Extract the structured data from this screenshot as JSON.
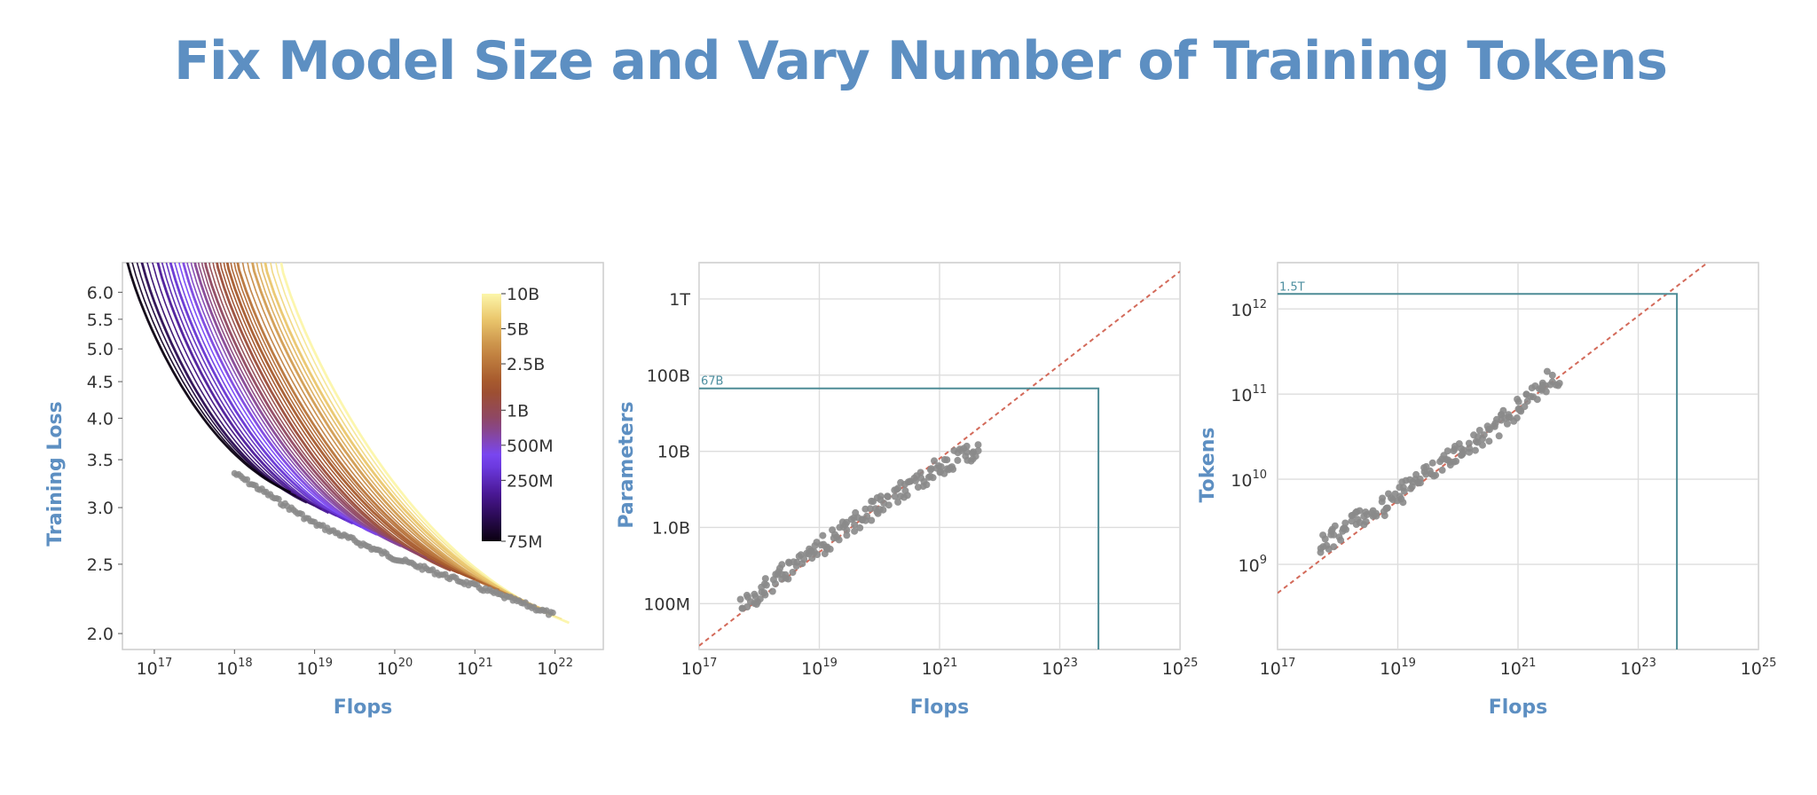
{
  "slide": {
    "title": "Fix Model Size and Vary Number of Training Tokens"
  },
  "colors": {
    "title": "#5d8fc2",
    "points": "#8a8a8a",
    "fit": "#d36a5a",
    "guide": "#4e8c96",
    "grid": "#dddddd",
    "frame": "#cccccc"
  },
  "chart_data": [
    {
      "type": "line",
      "xlabel": "Flops",
      "ylabel": "Training Loss",
      "xscale": "log",
      "yscale": "log",
      "xlim": [
        4e+16,
        4e+22
      ],
      "ylim": [
        1.9,
        6.6
      ],
      "x_ticks": [
        {
          "base": "10",
          "exp": "17",
          "value": 1e+17
        },
        {
          "base": "10",
          "exp": "18",
          "value": 1e+18
        },
        {
          "base": "10",
          "exp": "19",
          "value": 1e+19
        },
        {
          "base": "10",
          "exp": "20",
          "value": 1e+20
        },
        {
          "base": "10",
          "exp": "21",
          "value": 1e+21
        },
        {
          "base": "10",
          "exp": "22",
          "value": 1e+22
        }
      ],
      "y_ticks": [
        {
          "label": "6.0",
          "value": 6.0
        },
        {
          "label": "5.5",
          "value": 5.5
        },
        {
          "label": "5.0",
          "value": 5.0
        },
        {
          "label": "4.5",
          "value": 4.5
        },
        {
          "label": "4.0",
          "value": 4.0
        },
        {
          "label": "3.5",
          "value": 3.5
        },
        {
          "label": "3.0",
          "value": 3.0
        },
        {
          "label": "2.5",
          "value": 2.5
        },
        {
          "label": "2.0",
          "value": 2.0
        }
      ],
      "grid": false,
      "colorbar": {
        "placement": "right",
        "scale": "log",
        "range": [
          75000000,
          10000000000
        ],
        "ticks": [
          {
            "label": "10B",
            "value": 10000000000
          },
          {
            "label": "5B",
            "value": 5000000000
          },
          {
            "label": "2.5B",
            "value": 2500000000
          },
          {
            "label": "1B",
            "value": 1000000000
          },
          {
            "label": "500M",
            "value": 500000000
          },
          {
            "label": "250M",
            "value": 250000000
          },
          {
            "label": "75M",
            "value": 75000000
          }
        ]
      },
      "series": [
        {
          "params": 75000000,
          "x_end": 5e+18,
          "loss_end": 3.15
        },
        {
          "params": 120000000,
          "x_end": 8e+18,
          "loss_end": 3.05
        },
        {
          "params": 200000000,
          "x_end": 1.5e+19,
          "loss_end": 2.95
        },
        {
          "params": 300000000,
          "x_end": 3e+19,
          "loss_end": 2.85
        },
        {
          "params": 450000000,
          "x_end": 6e+19,
          "loss_end": 2.75
        },
        {
          "params": 650000000,
          "x_end": 1.2e+20,
          "loss_end": 2.65
        },
        {
          "params": 900000000,
          "x_end": 2.5e+20,
          "loss_end": 2.55
        },
        {
          "params": 1300000000,
          "x_end": 5e+20,
          "loss_end": 2.45
        },
        {
          "params": 1800000000,
          "x_end": 1e+21,
          "loss_end": 2.38
        },
        {
          "params": 2500000000,
          "x_end": 2e+21,
          "loss_end": 2.3
        },
        {
          "params": 4000000000,
          "x_end": 4e+21,
          "loss_end": 2.22
        },
        {
          "params": 6000000000,
          "x_end": 8e+21,
          "loss_end": 2.15
        },
        {
          "params": 10000000000,
          "x_end": 1.5e+22,
          "loss_end": 2.07
        }
      ],
      "envelope": {
        "x": [
          1e+18,
          1e+19,
          1e+20,
          1e+21,
          1e+22
        ],
        "y": [
          3.35,
          2.85,
          2.55,
          2.33,
          2.12
        ]
      }
    },
    {
      "type": "scatter",
      "xlabel": "Flops",
      "ylabel": "Parameters",
      "xscale": "log",
      "yscale": "log",
      "xlim": [
        1e+17,
        1e+25
      ],
      "ylim": [
        25000000.0,
        3000000000000.0
      ],
      "grid": true,
      "x_ticks": [
        {
          "base": "10",
          "exp": "17",
          "value": 1e+17
        },
        {
          "base": "10",
          "exp": "19",
          "value": 1e+19
        },
        {
          "base": "10",
          "exp": "21",
          "value": 1e+21
        },
        {
          "base": "10",
          "exp": "23",
          "value": 1e+23
        },
        {
          "base": "10",
          "exp": "25",
          "value": 1e+25
        }
      ],
      "y_ticks": [
        {
          "label": "100M",
          "value": 100000000.0
        },
        {
          "label": "1.0B",
          "value": 1000000000.0
        },
        {
          "label": "10B",
          "value": 10000000000.0
        },
        {
          "label": "100B",
          "value": 100000000000.0
        },
        {
          "label": "1T",
          "value": 1000000000000.0
        }
      ],
      "points": {
        "x": [
          5e+17,
          8e+17,
          1.2e+18,
          2e+18,
          3e+18,
          5e+18,
          8e+18,
          1.2e+19,
          2e+19,
          3e+19,
          5e+19,
          8e+19,
          1.2e+20,
          2e+20,
          3e+20,
          5e+20,
          8e+20,
          1.2e+21,
          2e+21,
          3e+21,
          5e+21
        ],
        "y": [
          100000000.0,
          120000000.0,
          160000000.0,
          210000000.0,
          280000000.0,
          360000000.0,
          480000000.0,
          600000000.0,
          780000000.0,
          1000000000.0,
          1300000000.0,
          1700000000.0,
          2100000000.0,
          2700000000.0,
          3400000000.0,
          4200000000.0,
          5400000000.0,
          6600000000.0,
          8000000000.0,
          9500000000.0,
          10000000000.0
        ]
      },
      "fit": {
        "x": [
          1e+17,
          1e+25
        ],
        "y": [
          28000000.0,
          2300000000000.0
        ]
      },
      "annotation": {
        "label": "67B",
        "x": 4.4e+23,
        "y": 67000000000.0
      }
    },
    {
      "type": "scatter",
      "xlabel": "Flops",
      "ylabel": "Tokens",
      "xscale": "log",
      "yscale": "log",
      "xlim": [
        1e+17,
        1e+25
      ],
      "ylim": [
        100000000.0,
        3500000000000.0
      ],
      "grid": true,
      "x_ticks": [
        {
          "base": "10",
          "exp": "17",
          "value": 1e+17
        },
        {
          "base": "10",
          "exp": "19",
          "value": 1e+19
        },
        {
          "base": "10",
          "exp": "21",
          "value": 1e+21
        },
        {
          "base": "10",
          "exp": "23",
          "value": 1e+23
        },
        {
          "base": "10",
          "exp": "25",
          "value": 1e+25
        }
      ],
      "y_ticks": [
        {
          "base": "10",
          "exp": "9",
          "value": 1000000000.0
        },
        {
          "base": "10",
          "exp": "10",
          "value": 10000000000.0
        },
        {
          "base": "10",
          "exp": "11",
          "value": 100000000000.0
        },
        {
          "base": "10",
          "exp": "12",
          "value": 1000000000000.0
        }
      ],
      "points": {
        "x": [
          5e+17,
          8e+17,
          1.2e+18,
          2e+18,
          3e+18,
          5e+18,
          8e+18,
          1.2e+19,
          2e+19,
          3e+19,
          5e+19,
          8e+19,
          1.2e+20,
          2e+20,
          3e+20,
          5e+20,
          8e+20,
          1.2e+21,
          2e+21,
          3e+21,
          5e+21
        ],
        "y": [
          1600000000.0,
          2000000000.0,
          2600000000.0,
          3200000000.0,
          3800000000.0,
          4500000000.0,
          5500000000.0,
          7000000000.0,
          9000000000.0,
          11000000000.0,
          14000000000.0,
          18000000000.0,
          23000000000.0,
          28000000000.0,
          33000000000.0,
          45000000000.0,
          60000000000.0,
          80000000000.0,
          110000000000.0,
          140000000000.0,
          170000000000.0
        ]
      },
      "fit": {
        "x": [
          1e+17,
          1.35e+24
        ],
        "y": [
          460000000.0,
          3400000000000.0
        ]
      },
      "annotation": {
        "label": "1.5T",
        "x": 4.4e+23,
        "y": 1500000000000.0
      }
    }
  ]
}
